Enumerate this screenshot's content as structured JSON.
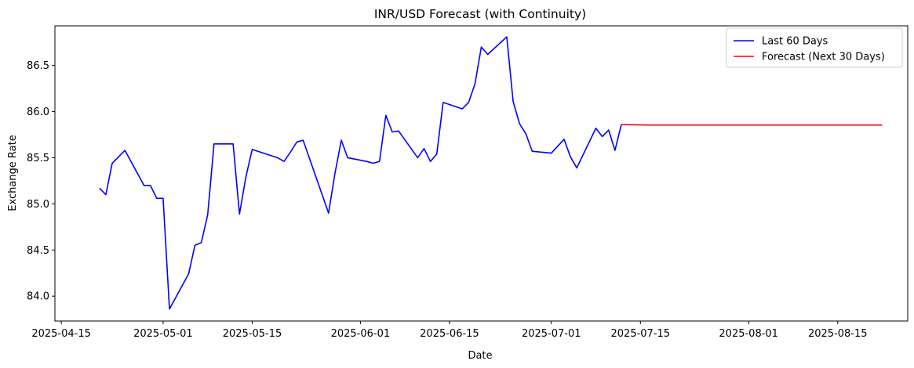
{
  "chart_data": {
    "type": "line",
    "title": "INR/USD Forecast (with Continuity)",
    "xlabel": "Date",
    "ylabel": "Exchange Rate",
    "xlim": [
      "2025-04-14",
      "2025-08-26"
    ],
    "ylim": [
      83.73,
      86.93
    ],
    "x_ticks": [
      "2025-04-15",
      "2025-05-01",
      "2025-05-15",
      "2025-06-01",
      "2025-06-15",
      "2025-07-01",
      "2025-07-15",
      "2025-08-01",
      "2025-08-15"
    ],
    "y_ticks": [
      84.0,
      84.5,
      85.0,
      85.5,
      86.0,
      86.5
    ],
    "grid": false,
    "legend_position": "top-right",
    "series": [
      {
        "name": "Last 60 Days",
        "color": "#0000ff",
        "points": [
          [
            "2025-04-21",
            85.17
          ],
          [
            "2025-04-22",
            85.1
          ],
          [
            "2025-04-23",
            85.44
          ],
          [
            "2025-04-25",
            85.58
          ],
          [
            "2025-04-28",
            85.2
          ],
          [
            "2025-04-29",
            85.2
          ],
          [
            "2025-04-30",
            85.06
          ],
          [
            "2025-05-01",
            85.06
          ],
          [
            "2025-05-02",
            83.86
          ],
          [
            "2025-05-05",
            84.24
          ],
          [
            "2025-05-06",
            84.55
          ],
          [
            "2025-05-07",
            84.58
          ],
          [
            "2025-05-08",
            84.88
          ],
          [
            "2025-05-09",
            85.65
          ],
          [
            "2025-05-12",
            85.65
          ],
          [
            "2025-05-13",
            84.89
          ],
          [
            "2025-05-14",
            85.29
          ],
          [
            "2025-05-15",
            85.59
          ],
          [
            "2025-05-19",
            85.5
          ],
          [
            "2025-05-20",
            85.46
          ],
          [
            "2025-05-21",
            85.56
          ],
          [
            "2025-05-22",
            85.67
          ],
          [
            "2025-05-23",
            85.69
          ],
          [
            "2025-05-27",
            84.9
          ],
          [
            "2025-05-28",
            85.33
          ],
          [
            "2025-05-29",
            85.69
          ],
          [
            "2025-05-30",
            85.5
          ],
          [
            "2025-06-02",
            85.46
          ],
          [
            "2025-06-03",
            85.44
          ],
          [
            "2025-06-04",
            85.46
          ],
          [
            "2025-06-05",
            85.96
          ],
          [
            "2025-06-06",
            85.78
          ],
          [
            "2025-06-07",
            85.79
          ],
          [
            "2025-06-10",
            85.5
          ],
          [
            "2025-06-11",
            85.6
          ],
          [
            "2025-06-12",
            85.46
          ],
          [
            "2025-06-13",
            85.54
          ],
          [
            "2025-06-14",
            86.1
          ],
          [
            "2025-06-17",
            86.03
          ],
          [
            "2025-06-18",
            86.1
          ],
          [
            "2025-06-19",
            86.3
          ],
          [
            "2025-06-20",
            86.7
          ],
          [
            "2025-06-21",
            86.62
          ],
          [
            "2025-06-24",
            86.81
          ],
          [
            "2025-06-25",
            86.11
          ],
          [
            "2025-06-26",
            85.87
          ],
          [
            "2025-06-27",
            85.76
          ],
          [
            "2025-06-28",
            85.57
          ],
          [
            "2025-07-01",
            85.55
          ],
          [
            "2025-07-03",
            85.7
          ],
          [
            "2025-07-04",
            85.51
          ],
          [
            "2025-07-05",
            85.39
          ],
          [
            "2025-07-08",
            85.82
          ],
          [
            "2025-07-09",
            85.73
          ],
          [
            "2025-07-10",
            85.8
          ],
          [
            "2025-07-11",
            85.58
          ],
          [
            "2025-07-12",
            85.86
          ]
        ]
      },
      {
        "name": "Forecast (Next 30 Days)",
        "color": "#ff0000",
        "points": [
          [
            "2025-07-12",
            85.86
          ],
          [
            "2025-07-16",
            85.855
          ],
          [
            "2025-07-31",
            85.855
          ],
          [
            "2025-08-22",
            85.855
          ]
        ]
      }
    ]
  }
}
